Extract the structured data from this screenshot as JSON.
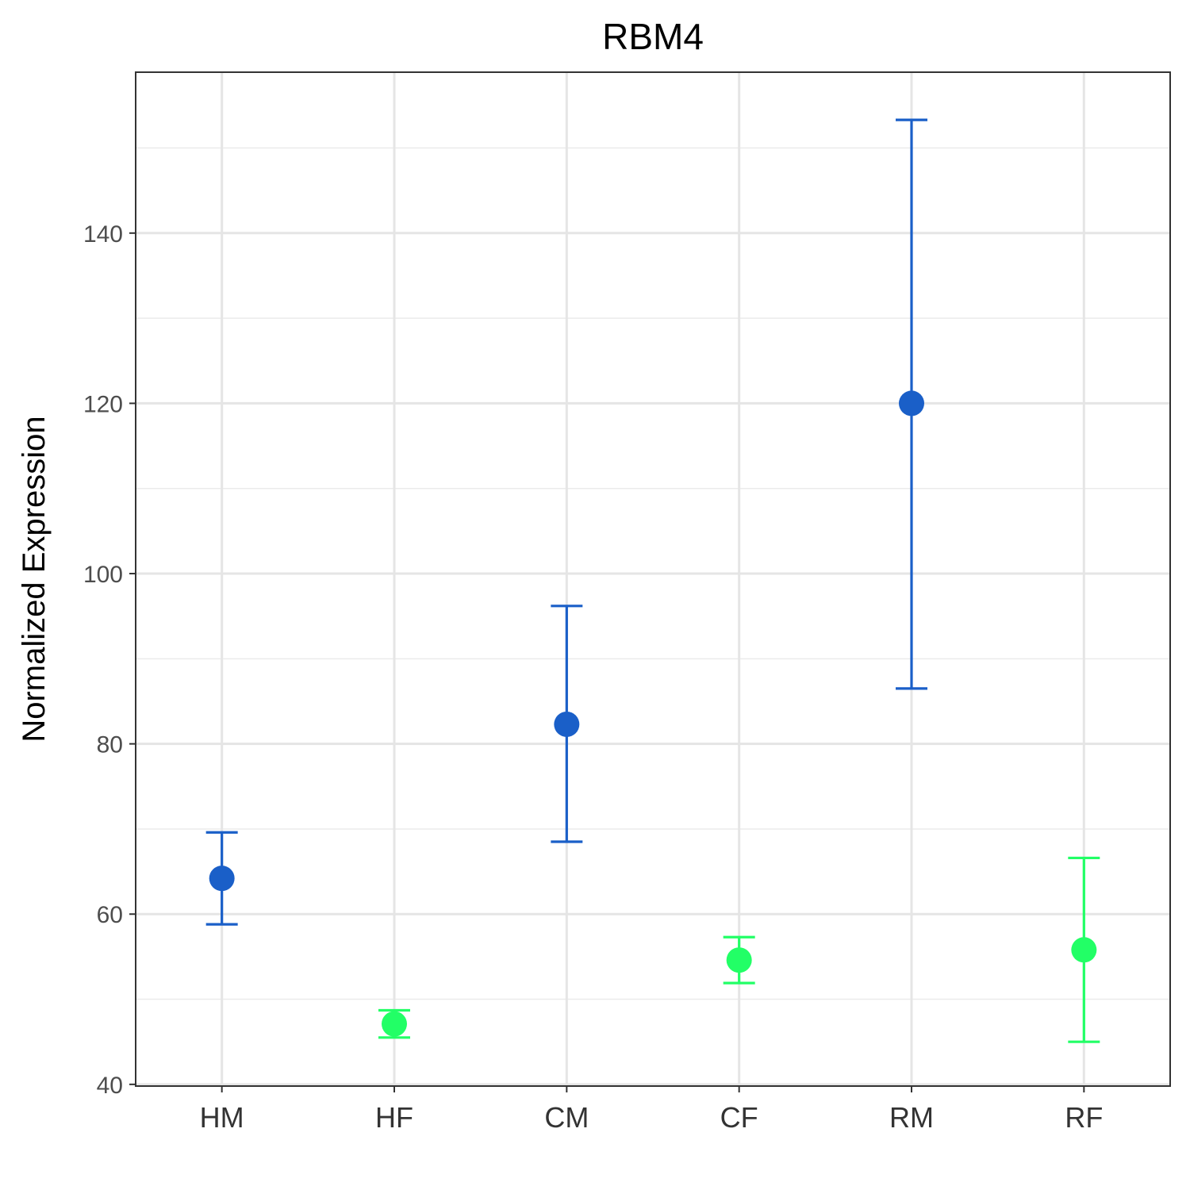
{
  "chart_data": {
    "type": "scatter",
    "title": "RBM4",
    "xlabel": "",
    "ylabel": "Normalized Expression",
    "categories": [
      "HM",
      "HF",
      "CM",
      "CF",
      "RM",
      "RF"
    ],
    "points": [
      {
        "category": "HM",
        "value": 64.2,
        "lower": 58.8,
        "upper": 69.6,
        "color": "#1a5fc8"
      },
      {
        "category": "HF",
        "value": 47.1,
        "lower": 45.5,
        "upper": 48.7,
        "color": "#22ff66"
      },
      {
        "category": "CM",
        "value": 82.3,
        "lower": 68.5,
        "upper": 96.2,
        "color": "#1a5fc8"
      },
      {
        "category": "CF",
        "value": 54.6,
        "lower": 51.9,
        "upper": 57.3,
        "color": "#22ff66"
      },
      {
        "category": "RM",
        "value": 120.0,
        "lower": 86.5,
        "upper": 153.3,
        "color": "#1a5fc8"
      },
      {
        "category": "RF",
        "value": 55.8,
        "lower": 45.0,
        "upper": 66.6,
        "color": "#22ff66"
      }
    ],
    "yticks": [
      40,
      60,
      80,
      100,
      120,
      140
    ],
    "ylim": [
      39.8,
      158.9
    ],
    "grid": true
  }
}
